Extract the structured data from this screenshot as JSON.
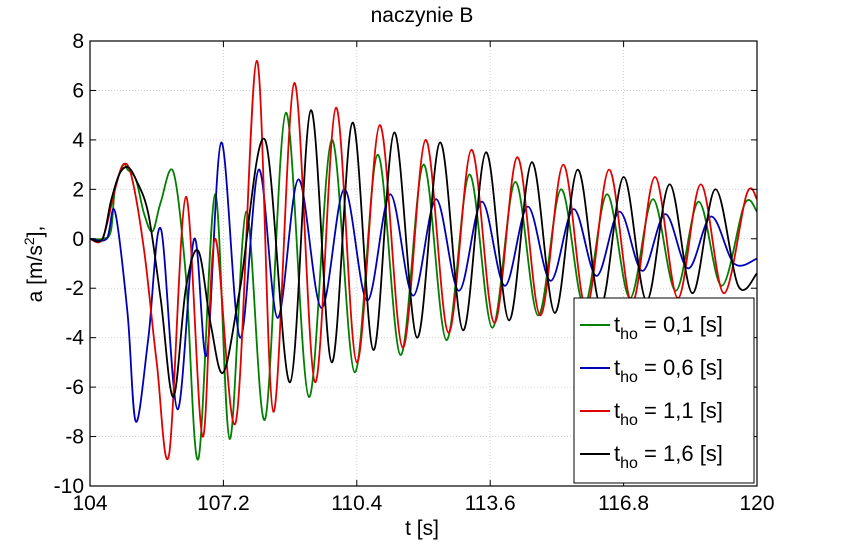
{
  "chart_data": {
    "type": "line",
    "title": "naczynie B",
    "xlabel": "t [s]",
    "ylabel": "a [m/s²],",
    "ylabel_parts": {
      "base": "a [m/s",
      "sup": "2",
      "tail": "],"
    },
    "xlim": [
      104,
      120
    ],
    "ylim": [
      -10,
      8
    ],
    "xticks": [
      104,
      107.2,
      110.4,
      113.6,
      116.8,
      120
    ],
    "xtick_labels": [
      "104",
      "107.2",
      "110.4",
      "113.6",
      "116.8",
      "120"
    ],
    "yticks": [
      -10,
      -8,
      -6,
      -4,
      -2,
      0,
      2,
      4,
      6,
      8
    ],
    "ytick_labels": [
      "-10",
      "-8",
      "-6",
      "-4",
      "-2",
      "0",
      "2",
      "4",
      "6",
      "8"
    ],
    "grid": true,
    "legend_position": "bottom-right",
    "series": [
      {
        "name": "t_ho = 0,1 [s]",
        "legend": {
          "t": "t",
          "sub": "ho",
          "rest": " = 0,1 [s]"
        },
        "color": "#007f00",
        "x": [
          104.0,
          104.3,
          104.5,
          104.6,
          104.8,
          104.9,
          105.1,
          105.3,
          105.5,
          105.7,
          106.0,
          106.3,
          106.6,
          107.0,
          107.35,
          107.75,
          108.2,
          108.7,
          109.25,
          109.8,
          110.35,
          110.9,
          111.45,
          112.0,
          112.55,
          113.1,
          113.65,
          114.2,
          114.75,
          115.3,
          115.85,
          116.4,
          116.95,
          117.5,
          118.05,
          118.6,
          119.15,
          119.7,
          120.0
        ],
        "y": [
          0.0,
          0.0,
          0.3,
          2.0,
          3.0,
          2.8,
          2.4,
          1.0,
          0.3,
          1.5,
          2.7,
          -1.5,
          -8.9,
          1.8,
          -8.1,
          1.1,
          -7.3,
          5.1,
          -6.4,
          4.0,
          -5.4,
          3.4,
          -4.7,
          3.0,
          -4.1,
          2.6,
          -3.6,
          2.3,
          -3.1,
          2.0,
          -2.7,
          1.8,
          -2.4,
          1.6,
          -2.1,
          1.5,
          -1.9,
          1.4,
          1.1
        ]
      },
      {
        "name": "t_ho = 0,6 [s]",
        "legend": {
          "t": "t",
          "sub": "ho",
          "rest": " = 0,6 [s]"
        },
        "color": "#0000b4",
        "x": [
          104.0,
          104.4,
          104.6,
          104.9,
          105.1,
          105.4,
          105.7,
          106.1,
          106.5,
          106.8,
          107.15,
          107.6,
          108.05,
          108.5,
          109.0,
          109.55,
          110.1,
          110.65,
          111.2,
          111.75,
          112.3,
          112.85,
          113.4,
          113.95,
          114.5,
          115.05,
          115.6,
          116.15,
          116.7,
          117.25,
          117.8,
          118.35,
          118.9,
          119.45,
          120.0
        ],
        "y": [
          0.0,
          0.0,
          1.1,
          -3.0,
          -7.4,
          -4.0,
          0.4,
          -6.9,
          0.0,
          -4.7,
          3.9,
          -4.0,
          2.8,
          -3.2,
          2.4,
          -2.8,
          2.0,
          -2.5,
          1.8,
          -2.3,
          1.6,
          -2.1,
          1.5,
          -1.9,
          1.3,
          -1.7,
          1.2,
          -1.5,
          1.1,
          -1.3,
          1.0,
          -1.2,
          0.9,
          -1.0,
          -0.8
        ]
      },
      {
        "name": "t_ho = 1,1 [s]",
        "legend": {
          "t": "t",
          "sub": "ho",
          "rest": " = 1,1 [s]"
        },
        "color": "#e00000",
        "x": [
          104.0,
          104.3,
          104.6,
          104.8,
          105.0,
          105.3,
          105.6,
          105.9,
          106.3,
          106.7,
          107.0,
          107.5,
          108.0,
          108.4,
          108.9,
          109.4,
          109.9,
          110.4,
          110.95,
          111.5,
          112.05,
          112.6,
          113.15,
          113.7,
          114.25,
          114.8,
          115.35,
          115.9,
          116.45,
          117.0,
          117.55,
          118.1,
          118.65,
          119.2,
          119.75,
          120.0
        ],
        "y": [
          0.0,
          0.0,
          2.0,
          3.0,
          2.5,
          -0.5,
          -5.0,
          -8.7,
          1.7,
          -8.0,
          0.0,
          -7.4,
          7.2,
          -7.0,
          6.3,
          -5.8,
          5.3,
          -5.0,
          4.6,
          -4.4,
          4.0,
          -3.8,
          3.6,
          -3.4,
          3.3,
          -3.1,
          3.0,
          -2.8,
          2.8,
          -2.6,
          2.5,
          -2.4,
          2.2,
          -2.2,
          1.8,
          1.6
        ]
      },
      {
        "name": "t_ho = 1,6 [s]",
        "legend": {
          "t": "t",
          "sub": "ho",
          "rest": " = 1,6 [s]"
        },
        "color": "#000000",
        "x": [
          104.0,
          104.3,
          104.5,
          104.7,
          104.9,
          105.1,
          105.4,
          105.7,
          106.0,
          106.3,
          106.6,
          106.9,
          107.2,
          107.6,
          108.2,
          108.8,
          109.3,
          109.8,
          110.3,
          110.8,
          111.3,
          111.85,
          112.4,
          112.95,
          113.5,
          114.05,
          114.6,
          115.15,
          115.7,
          116.25,
          116.8,
          117.35,
          117.9,
          118.45,
          119.0,
          119.55,
          120.0
        ],
        "y": [
          0.0,
          0.0,
          1.5,
          2.6,
          2.9,
          2.4,
          1.0,
          -2.5,
          -6.4,
          -2.0,
          -0.5,
          -3.5,
          -5.4,
          -2.0,
          4.0,
          -5.8,
          5.2,
          -5.0,
          4.7,
          -4.5,
          4.3,
          -4.0,
          3.9,
          -3.7,
          3.5,
          -3.3,
          3.1,
          -3.0,
          2.8,
          -2.7,
          2.5,
          -2.5,
          2.2,
          -2.2,
          2.0,
          -1.9,
          -1.4
        ]
      }
    ]
  }
}
